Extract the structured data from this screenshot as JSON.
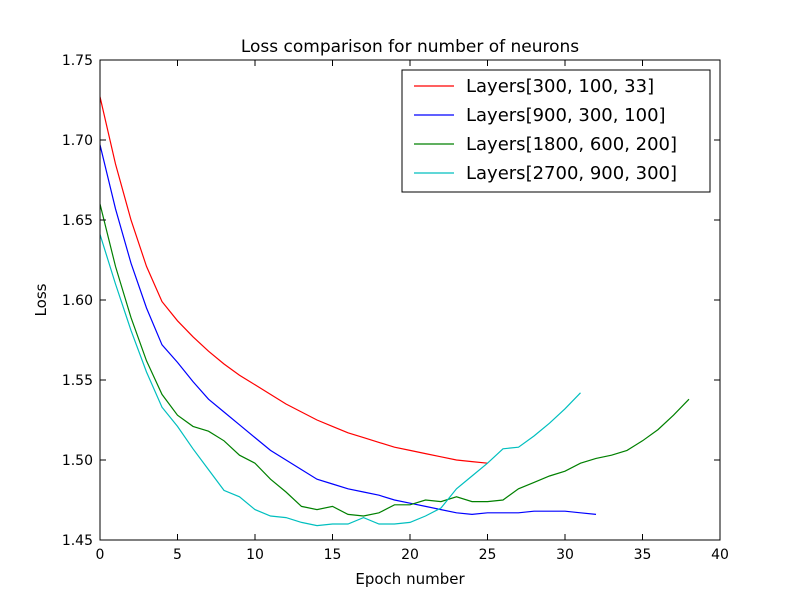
{
  "chart_data": {
    "type": "line",
    "title": "Loss comparison for number of neurons",
    "xlabel": "Epoch number",
    "ylabel": "Loss",
    "xlim": [
      0,
      40
    ],
    "ylim": [
      1.45,
      1.75
    ],
    "xticks": [
      0,
      5,
      10,
      15,
      20,
      25,
      30,
      35,
      40
    ],
    "yticks": [
      1.45,
      1.5,
      1.55,
      1.6,
      1.65,
      1.7,
      1.75
    ],
    "xtick_labels": [
      "0",
      "5",
      "10",
      "15",
      "20",
      "25",
      "30",
      "35",
      "40"
    ],
    "ytick_labels": [
      "1.45",
      "1.50",
      "1.55",
      "1.60",
      "1.65",
      "1.70",
      "1.75"
    ],
    "grid": false,
    "legend_position": "top-right",
    "series": [
      {
        "name": "Layers[300, 100, 33]",
        "color": "#ff0000",
        "x": [
          0,
          1,
          2,
          3,
          4,
          5,
          6,
          7,
          8,
          9,
          10,
          11,
          12,
          13,
          14,
          15,
          16,
          17,
          18,
          19,
          20,
          21,
          22,
          23,
          24,
          25
        ],
        "y": [
          1.727,
          1.685,
          1.65,
          1.621,
          1.599,
          1.587,
          1.577,
          1.568,
          1.56,
          1.553,
          1.547,
          1.541,
          1.535,
          1.53,
          1.525,
          1.521,
          1.517,
          1.514,
          1.511,
          1.508,
          1.506,
          1.504,
          1.502,
          1.5,
          1.499,
          1.498
        ]
      },
      {
        "name": "Layers[900, 300, 100]",
        "color": "#0000ff",
        "x": [
          0,
          1,
          2,
          3,
          4,
          5,
          6,
          7,
          8,
          9,
          10,
          11,
          12,
          13,
          14,
          15,
          16,
          17,
          18,
          19,
          20,
          21,
          22,
          23,
          24,
          25,
          26,
          27,
          28,
          29,
          30,
          31,
          32
        ],
        "y": [
          1.697,
          1.657,
          1.623,
          1.595,
          1.572,
          1.561,
          1.549,
          1.538,
          1.53,
          1.522,
          1.514,
          1.506,
          1.5,
          1.494,
          1.488,
          1.485,
          1.482,
          1.48,
          1.478,
          1.475,
          1.473,
          1.471,
          1.469,
          1.467,
          1.466,
          1.467,
          1.467,
          1.467,
          1.468,
          1.468,
          1.468,
          1.467,
          1.466
        ]
      },
      {
        "name": "Layers[1800, 600, 200]",
        "color": "#008000",
        "x": [
          0,
          1,
          2,
          3,
          4,
          5,
          6,
          7,
          8,
          9,
          10,
          11,
          12,
          13,
          14,
          15,
          16,
          17,
          18,
          19,
          20,
          21,
          22,
          23,
          24,
          25,
          26,
          27,
          28,
          29,
          30,
          31,
          32,
          33,
          34,
          35,
          36,
          37,
          38
        ],
        "y": [
          1.66,
          1.621,
          1.589,
          1.562,
          1.541,
          1.528,
          1.521,
          1.518,
          1.512,
          1.503,
          1.498,
          1.488,
          1.48,
          1.471,
          1.469,
          1.471,
          1.466,
          1.465,
          1.467,
          1.472,
          1.472,
          1.475,
          1.474,
          1.477,
          1.474,
          1.474,
          1.475,
          1.482,
          1.486,
          1.49,
          1.493,
          1.498,
          1.501,
          1.503,
          1.506,
          1.512,
          1.519,
          1.528,
          1.538
        ]
      },
      {
        "name": "Layers[2700, 900, 300]",
        "color": "#00bfbf",
        "x": [
          0,
          1,
          2,
          3,
          4,
          5,
          6,
          7,
          8,
          9,
          10,
          11,
          12,
          13,
          14,
          15,
          16,
          17,
          18,
          19,
          20,
          21,
          22,
          23,
          24,
          25,
          26,
          27,
          28,
          29,
          30,
          31
        ],
        "y": [
          1.641,
          1.61,
          1.581,
          1.555,
          1.533,
          1.521,
          1.507,
          1.494,
          1.481,
          1.477,
          1.469,
          1.465,
          1.464,
          1.461,
          1.459,
          1.46,
          1.46,
          1.464,
          1.46,
          1.46,
          1.461,
          1.465,
          1.47,
          1.482,
          1.49,
          1.498,
          1.507,
          1.508,
          1.515,
          1.523,
          1.532,
          1.542
        ]
      }
    ]
  }
}
